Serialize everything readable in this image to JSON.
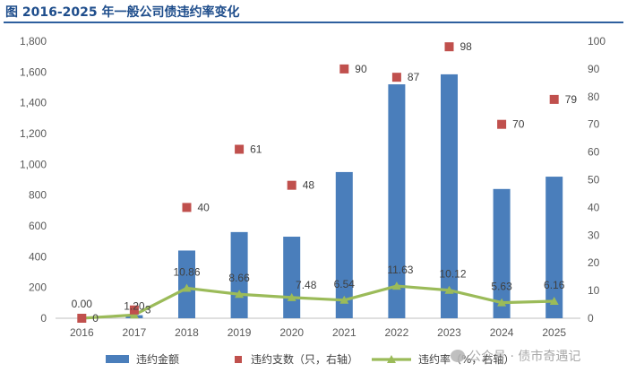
{
  "title": "图  2016-2025 年一般公司债违约率变化",
  "watermark": "公众号 · 债市奇遇记",
  "chart_data": {
    "type": "bar",
    "categories": [
      "2016",
      "2017",
      "2018",
      "2019",
      "2020",
      "2021",
      "2022",
      "2023",
      "2024",
      "2025"
    ],
    "series": [
      {
        "name": "违约金额",
        "type": "bar",
        "axis": "left",
        "color": "#4a7ebb",
        "values": [
          0,
          20,
          440,
          560,
          530,
          950,
          1520,
          1585,
          840,
          920
        ]
      },
      {
        "name": "违约支数（只，右轴）",
        "type": "scatter",
        "axis": "right",
        "color": "#c0504d",
        "values": [
          0,
          3,
          40,
          61,
          48,
          90,
          87,
          98,
          70,
          79
        ]
      },
      {
        "name": "违约率（%，右轴）",
        "type": "line",
        "axis": "right",
        "color": "#9bbb59",
        "values": [
          0.0,
          1.2,
          10.86,
          8.66,
          7.48,
          6.54,
          11.63,
          10.12,
          5.63,
          6.16
        ]
      }
    ],
    "amount_labels": [
      "0.00",
      "1.20",
      "10.86",
      "8.66",
      "7.48",
      "6.54",
      "11.63",
      "10.12",
      "5.63",
      "6.16"
    ],
    "count_labels": [
      "0",
      "3",
      "40",
      "61",
      "48",
      "90",
      "87",
      "98",
      "70",
      "79"
    ],
    "y_left": {
      "min": 0,
      "max": 1800,
      "ticks": [
        "0",
        "200",
        "400",
        "600",
        "800",
        "1,000",
        "1,200",
        "1,400",
        "1,600",
        "1,800"
      ]
    },
    "y_right": {
      "min": 0,
      "max": 100,
      "ticks": [
        "0",
        "10",
        "20",
        "30",
        "40",
        "50",
        "60",
        "70",
        "80",
        "90",
        "100"
      ]
    },
    "grid": false,
    "legend_position": "bottom"
  }
}
